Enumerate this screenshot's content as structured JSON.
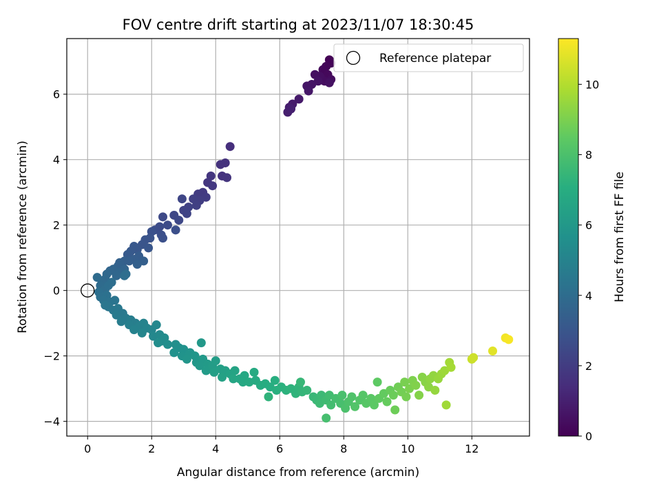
{
  "chart_data": {
    "type": "scatter",
    "title": "FOV centre drift starting at 2023/11/07 18:30:45",
    "xlabel": "Angular distance from reference (arcmin)",
    "ylabel": "Rotation from reference (arcmin)",
    "xlim": [
      -0.65,
      13.8
    ],
    "ylim": [
      -4.45,
      7.7
    ],
    "xticks": [
      0,
      2,
      4,
      6,
      8,
      10,
      12
    ],
    "yticks": [
      -4,
      -2,
      0,
      2,
      4,
      6
    ],
    "grid": true,
    "legend": {
      "placement": "top-right",
      "entries": [
        "Reference platepar"
      ]
    },
    "colorbar": {
      "label": "Hours from first FF file",
      "range": [
        0,
        11.3
      ],
      "ticks": [
        0,
        2,
        4,
        6,
        8,
        10
      ],
      "colormap": "viridis"
    },
    "reference_point": {
      "name": "Reference platepar",
      "x": 0,
      "y": 0
    },
    "series": [
      {
        "columns": [
          "x",
          "y",
          "hours"
        ],
        "points": [
          [
            7.55,
            7.05,
            0.05
          ],
          [
            7.6,
            6.95,
            0.1
          ],
          [
            7.45,
            6.85,
            0.15
          ],
          [
            7.35,
            6.75,
            0.2
          ],
          [
            7.5,
            6.6,
            0.25
          ],
          [
            7.3,
            6.5,
            0.3
          ],
          [
            7.6,
            6.45,
            0.35
          ],
          [
            7.4,
            6.4,
            0.4
          ],
          [
            7.25,
            6.55,
            0.42
          ],
          [
            7.1,
            6.6,
            0.45
          ],
          [
            7.55,
            6.35,
            0.5
          ],
          [
            7.2,
            6.4,
            0.55
          ],
          [
            7.0,
            6.3,
            0.6
          ],
          [
            6.85,
            6.25,
            0.65
          ],
          [
            6.9,
            6.1,
            0.7
          ],
          [
            6.6,
            5.85,
            0.8
          ],
          [
            6.4,
            5.7,
            0.85
          ],
          [
            6.3,
            5.6,
            0.9
          ],
          [
            6.25,
            5.45,
            0.95
          ],
          [
            6.35,
            5.55,
            1.0
          ],
          [
            4.45,
            4.4,
            1.5
          ],
          [
            4.3,
            3.9,
            1.6
          ],
          [
            4.15,
            3.85,
            1.62
          ],
          [
            4.2,
            3.5,
            1.65
          ],
          [
            4.35,
            3.45,
            1.7
          ],
          [
            3.85,
            3.5,
            1.75
          ],
          [
            3.75,
            3.3,
            1.8
          ],
          [
            3.9,
            3.2,
            1.85
          ],
          [
            3.6,
            3.0,
            1.9
          ],
          [
            3.45,
            2.95,
            1.95
          ],
          [
            3.7,
            2.85,
            2.0
          ],
          [
            3.5,
            2.75,
            2.05
          ],
          [
            3.3,
            2.8,
            2.1
          ],
          [
            3.4,
            2.6,
            2.15
          ],
          [
            3.15,
            2.55,
            2.2
          ],
          [
            3.0,
            2.45,
            2.25
          ],
          [
            3.1,
            2.35,
            2.3
          ],
          [
            2.95,
            2.8,
            2.35
          ],
          [
            2.7,
            2.3,
            2.4
          ],
          [
            2.85,
            2.15,
            2.45
          ],
          [
            2.35,
            2.25,
            2.5
          ],
          [
            2.5,
            2.0,
            2.55
          ],
          [
            2.25,
            1.95,
            2.6
          ],
          [
            2.1,
            1.85,
            2.65
          ],
          [
            2.3,
            1.7,
            2.7
          ],
          [
            2.75,
            1.85,
            2.72
          ],
          [
            2.35,
            1.6,
            2.75
          ],
          [
            2.0,
            1.8,
            2.8
          ],
          [
            1.95,
            1.6,
            2.85
          ],
          [
            1.8,
            1.55,
            2.9
          ],
          [
            1.7,
            1.4,
            2.95
          ],
          [
            1.9,
            1.3,
            3.0
          ],
          [
            1.55,
            1.25,
            3.05
          ],
          [
            1.45,
            1.35,
            3.1
          ],
          [
            1.35,
            1.2,
            3.15
          ],
          [
            1.25,
            1.1,
            3.2
          ],
          [
            1.6,
            1.05,
            3.25
          ],
          [
            1.45,
            0.95,
            3.3
          ],
          [
            1.3,
            0.9,
            3.35
          ],
          [
            1.15,
            0.9,
            3.4
          ],
          [
            1.75,
            0.9,
            3.42
          ],
          [
            1.55,
            0.8,
            3.45
          ],
          [
            1.0,
            0.85,
            3.5
          ],
          [
            0.95,
            0.75,
            3.55
          ],
          [
            1.15,
            0.65,
            3.6
          ],
          [
            0.8,
            0.65,
            3.65
          ],
          [
            0.7,
            0.6,
            3.7
          ],
          [
            1.0,
            0.55,
            3.72
          ],
          [
            0.9,
            0.45,
            3.75
          ],
          [
            0.6,
            0.5,
            3.8
          ],
          [
            0.55,
            0.35,
            3.85
          ],
          [
            0.45,
            0.25,
            3.9
          ],
          [
            0.3,
            0.4,
            3.92
          ],
          [
            0.4,
            0.15,
            3.95
          ],
          [
            0.55,
            0.05,
            4.0
          ],
          [
            1.2,
            0.5,
            4.02
          ],
          [
            1.15,
            0.45,
            4.05
          ],
          [
            0.65,
            0.15,
            4.05
          ],
          [
            0.75,
            0.25,
            4.08
          ],
          [
            0.35,
            -0.05,
            4.1
          ],
          [
            0.4,
            -0.2,
            4.15
          ],
          [
            0.6,
            -0.15,
            4.2
          ],
          [
            0.5,
            -0.3,
            4.25
          ],
          [
            0.7,
            -0.35,
            4.3
          ],
          [
            0.85,
            -0.3,
            4.35
          ],
          [
            0.65,
            -0.5,
            4.4
          ],
          [
            0.55,
            -0.45,
            4.42
          ],
          [
            0.8,
            -0.6,
            4.45
          ],
          [
            0.95,
            -0.55,
            4.5
          ],
          [
            1.1,
            -0.7,
            4.55
          ],
          [
            0.9,
            -0.75,
            4.6
          ],
          [
            1.2,
            -0.85,
            4.65
          ],
          [
            1.05,
            -0.95,
            4.7
          ],
          [
            1.35,
            -0.9,
            4.75
          ],
          [
            1.5,
            -1.0,
            4.8
          ],
          [
            1.3,
            -1.05,
            4.85
          ],
          [
            1.6,
            -1.1,
            4.9
          ],
          [
            1.45,
            -1.2,
            4.95
          ],
          [
            1.75,
            -1.0,
            5.0
          ],
          [
            1.85,
            -1.15,
            5.05
          ],
          [
            2.0,
            -1.2,
            5.1
          ],
          [
            1.7,
            -1.3,
            5.15
          ],
          [
            2.15,
            -1.05,
            5.2
          ],
          [
            2.05,
            -1.4,
            5.25
          ],
          [
            2.25,
            -1.35,
            5.3
          ],
          [
            2.3,
            -1.55,
            5.35
          ],
          [
            2.4,
            -1.45,
            5.4
          ],
          [
            2.2,
            -1.6,
            5.45
          ],
          [
            2.5,
            -1.65,
            5.5
          ],
          [
            2.75,
            -1.65,
            5.55
          ],
          [
            2.85,
            -1.75,
            5.6
          ],
          [
            2.7,
            -1.9,
            5.65
          ],
          [
            3.0,
            -1.8,
            5.7
          ],
          [
            2.95,
            -2.0,
            5.75
          ],
          [
            3.2,
            -1.9,
            5.8
          ],
          [
            3.1,
            -2.1,
            5.85
          ],
          [
            3.35,
            -2.0,
            5.9
          ],
          [
            3.4,
            -2.2,
            5.95
          ],
          [
            3.55,
            -1.6,
            6.0
          ],
          [
            3.6,
            -2.1,
            6.02
          ],
          [
            3.5,
            -2.3,
            6.05
          ],
          [
            3.75,
            -2.25,
            6.1
          ],
          [
            3.7,
            -2.45,
            6.15
          ],
          [
            3.9,
            -2.3,
            6.2
          ],
          [
            4.0,
            -2.15,
            6.25
          ],
          [
            3.95,
            -2.5,
            6.3
          ],
          [
            4.15,
            -2.4,
            6.35
          ],
          [
            4.3,
            -2.45,
            6.4
          ],
          [
            4.2,
            -2.65,
            6.45
          ],
          [
            4.45,
            -2.55,
            6.5
          ],
          [
            4.6,
            -2.45,
            6.55
          ],
          [
            4.55,
            -2.7,
            6.6
          ],
          [
            4.75,
            -2.7,
            6.65
          ],
          [
            4.9,
            -2.6,
            6.7
          ],
          [
            4.85,
            -2.8,
            6.75
          ],
          [
            5.05,
            -2.8,
            6.8
          ],
          [
            5.25,
            -2.75,
            6.85
          ],
          [
            5.2,
            -2.5,
            6.88
          ],
          [
            5.4,
            -2.9,
            6.9
          ],
          [
            5.55,
            -2.85,
            6.95
          ],
          [
            5.7,
            -2.95,
            7.0
          ],
          [
            5.85,
            -2.75,
            7.05
          ],
          [
            5.9,
            -3.05,
            7.1
          ],
          [
            6.05,
            -2.95,
            7.15
          ],
          [
            6.2,
            -3.05,
            7.2
          ],
          [
            6.35,
            -3.0,
            7.25
          ],
          [
            5.65,
            -3.25,
            7.28
          ],
          [
            6.5,
            -3.15,
            7.3
          ],
          [
            6.6,
            -2.95,
            7.35
          ],
          [
            6.7,
            -3.1,
            7.4
          ],
          [
            6.85,
            -3.05,
            7.45
          ],
          [
            6.65,
            -2.8,
            7.48
          ],
          [
            7.05,
            -3.25,
            7.5
          ],
          [
            7.15,
            -3.35,
            7.55
          ],
          [
            7.3,
            -3.2,
            7.6
          ],
          [
            7.25,
            -3.45,
            7.65
          ],
          [
            7.45,
            -3.35,
            7.7
          ],
          [
            7.55,
            -3.2,
            7.75
          ],
          [
            7.6,
            -3.5,
            7.8
          ],
          [
            7.75,
            -3.3,
            7.85
          ],
          [
            7.45,
            -3.9,
            7.88
          ],
          [
            7.9,
            -3.45,
            7.9
          ],
          [
            7.95,
            -3.2,
            7.95
          ],
          [
            8.05,
            -3.6,
            8.0
          ],
          [
            8.15,
            -3.4,
            8.05
          ],
          [
            8.25,
            -3.25,
            8.1
          ],
          [
            8.35,
            -3.55,
            8.15
          ],
          [
            8.5,
            -3.35,
            8.2
          ],
          [
            8.6,
            -3.2,
            8.25
          ],
          [
            8.7,
            -3.45,
            8.3
          ],
          [
            8.85,
            -3.3,
            8.35
          ],
          [
            8.95,
            -3.5,
            8.4
          ],
          [
            9.05,
            -2.8,
            8.45
          ],
          [
            9.1,
            -3.3,
            8.5
          ],
          [
            9.25,
            -3.15,
            8.55
          ],
          [
            9.35,
            -3.4,
            8.6
          ],
          [
            9.45,
            -3.05,
            8.65
          ],
          [
            9.55,
            -3.2,
            8.7
          ],
          [
            9.6,
            -3.65,
            8.75
          ],
          [
            9.7,
            -2.95,
            8.8
          ],
          [
            9.8,
            -3.1,
            8.85
          ],
          [
            9.95,
            -3.25,
            8.9
          ],
          [
            9.9,
            -2.8,
            8.95
          ],
          [
            10.05,
            -3.0,
            9.0
          ],
          [
            10.15,
            -2.75,
            9.05
          ],
          [
            10.25,
            -2.9,
            9.1
          ],
          [
            10.35,
            -3.2,
            9.15
          ],
          [
            10.45,
            -2.65,
            9.2
          ],
          [
            10.55,
            -2.8,
            9.25
          ],
          [
            10.65,
            -2.95,
            9.3
          ],
          [
            10.7,
            -2.7,
            9.35
          ],
          [
            10.8,
            -2.6,
            9.4
          ],
          [
            10.85,
            -3.05,
            9.45
          ],
          [
            10.95,
            -2.7,
            9.5
          ],
          [
            11.05,
            -2.55,
            9.55
          ],
          [
            11.15,
            -2.45,
            9.6
          ],
          [
            11.2,
            -3.5,
            9.65
          ],
          [
            11.3,
            -2.2,
            9.7
          ],
          [
            11.35,
            -2.35,
            9.75
          ],
          [
            12.0,
            -2.1,
            10.4
          ],
          [
            12.05,
            -2.05,
            10.45
          ],
          [
            12.65,
            -1.85,
            10.8
          ],
          [
            13.05,
            -1.45,
            11.1
          ],
          [
            13.15,
            -1.5,
            11.2
          ]
        ]
      }
    ]
  }
}
